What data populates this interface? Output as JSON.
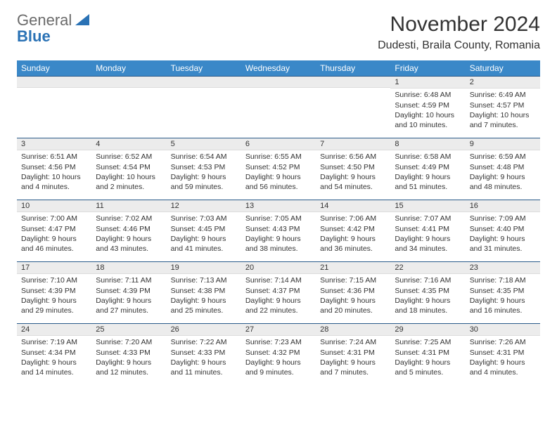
{
  "logo": {
    "word1": "General",
    "word2": "Blue"
  },
  "header": {
    "month_title": "November 2024",
    "location": "Dudesti, Braila County, Romania"
  },
  "colors": {
    "header_bg": "#3a88c8",
    "header_fg": "#ffffff",
    "daynum_bg": "#ececec",
    "border": "#2a5a8a",
    "logo_gray": "#6b6b6b",
    "logo_blue": "#2a72b5",
    "text": "#333333",
    "page_bg": "#ffffff"
  },
  "weekdays": [
    "Sunday",
    "Monday",
    "Tuesday",
    "Wednesday",
    "Thursday",
    "Friday",
    "Saturday"
  ],
  "weeks": [
    [
      null,
      null,
      null,
      null,
      null,
      {
        "n": "1",
        "sunrise": "Sunrise: 6:48 AM",
        "sunset": "Sunset: 4:59 PM",
        "day": "Daylight: 10 hours and 10 minutes."
      },
      {
        "n": "2",
        "sunrise": "Sunrise: 6:49 AM",
        "sunset": "Sunset: 4:57 PM",
        "day": "Daylight: 10 hours and 7 minutes."
      }
    ],
    [
      {
        "n": "3",
        "sunrise": "Sunrise: 6:51 AM",
        "sunset": "Sunset: 4:56 PM",
        "day": "Daylight: 10 hours and 4 minutes."
      },
      {
        "n": "4",
        "sunrise": "Sunrise: 6:52 AM",
        "sunset": "Sunset: 4:54 PM",
        "day": "Daylight: 10 hours and 2 minutes."
      },
      {
        "n": "5",
        "sunrise": "Sunrise: 6:54 AM",
        "sunset": "Sunset: 4:53 PM",
        "day": "Daylight: 9 hours and 59 minutes."
      },
      {
        "n": "6",
        "sunrise": "Sunrise: 6:55 AM",
        "sunset": "Sunset: 4:52 PM",
        "day": "Daylight: 9 hours and 56 minutes."
      },
      {
        "n": "7",
        "sunrise": "Sunrise: 6:56 AM",
        "sunset": "Sunset: 4:50 PM",
        "day": "Daylight: 9 hours and 54 minutes."
      },
      {
        "n": "8",
        "sunrise": "Sunrise: 6:58 AM",
        "sunset": "Sunset: 4:49 PM",
        "day": "Daylight: 9 hours and 51 minutes."
      },
      {
        "n": "9",
        "sunrise": "Sunrise: 6:59 AM",
        "sunset": "Sunset: 4:48 PM",
        "day": "Daylight: 9 hours and 48 minutes."
      }
    ],
    [
      {
        "n": "10",
        "sunrise": "Sunrise: 7:00 AM",
        "sunset": "Sunset: 4:47 PM",
        "day": "Daylight: 9 hours and 46 minutes."
      },
      {
        "n": "11",
        "sunrise": "Sunrise: 7:02 AM",
        "sunset": "Sunset: 4:46 PM",
        "day": "Daylight: 9 hours and 43 minutes."
      },
      {
        "n": "12",
        "sunrise": "Sunrise: 7:03 AM",
        "sunset": "Sunset: 4:45 PM",
        "day": "Daylight: 9 hours and 41 minutes."
      },
      {
        "n": "13",
        "sunrise": "Sunrise: 7:05 AM",
        "sunset": "Sunset: 4:43 PM",
        "day": "Daylight: 9 hours and 38 minutes."
      },
      {
        "n": "14",
        "sunrise": "Sunrise: 7:06 AM",
        "sunset": "Sunset: 4:42 PM",
        "day": "Daylight: 9 hours and 36 minutes."
      },
      {
        "n": "15",
        "sunrise": "Sunrise: 7:07 AM",
        "sunset": "Sunset: 4:41 PM",
        "day": "Daylight: 9 hours and 34 minutes."
      },
      {
        "n": "16",
        "sunrise": "Sunrise: 7:09 AM",
        "sunset": "Sunset: 4:40 PM",
        "day": "Daylight: 9 hours and 31 minutes."
      }
    ],
    [
      {
        "n": "17",
        "sunrise": "Sunrise: 7:10 AM",
        "sunset": "Sunset: 4:39 PM",
        "day": "Daylight: 9 hours and 29 minutes."
      },
      {
        "n": "18",
        "sunrise": "Sunrise: 7:11 AM",
        "sunset": "Sunset: 4:39 PM",
        "day": "Daylight: 9 hours and 27 minutes."
      },
      {
        "n": "19",
        "sunrise": "Sunrise: 7:13 AM",
        "sunset": "Sunset: 4:38 PM",
        "day": "Daylight: 9 hours and 25 minutes."
      },
      {
        "n": "20",
        "sunrise": "Sunrise: 7:14 AM",
        "sunset": "Sunset: 4:37 PM",
        "day": "Daylight: 9 hours and 22 minutes."
      },
      {
        "n": "21",
        "sunrise": "Sunrise: 7:15 AM",
        "sunset": "Sunset: 4:36 PM",
        "day": "Daylight: 9 hours and 20 minutes."
      },
      {
        "n": "22",
        "sunrise": "Sunrise: 7:16 AM",
        "sunset": "Sunset: 4:35 PM",
        "day": "Daylight: 9 hours and 18 minutes."
      },
      {
        "n": "23",
        "sunrise": "Sunrise: 7:18 AM",
        "sunset": "Sunset: 4:35 PM",
        "day": "Daylight: 9 hours and 16 minutes."
      }
    ],
    [
      {
        "n": "24",
        "sunrise": "Sunrise: 7:19 AM",
        "sunset": "Sunset: 4:34 PM",
        "day": "Daylight: 9 hours and 14 minutes."
      },
      {
        "n": "25",
        "sunrise": "Sunrise: 7:20 AM",
        "sunset": "Sunset: 4:33 PM",
        "day": "Daylight: 9 hours and 12 minutes."
      },
      {
        "n": "26",
        "sunrise": "Sunrise: 7:22 AM",
        "sunset": "Sunset: 4:33 PM",
        "day": "Daylight: 9 hours and 11 minutes."
      },
      {
        "n": "27",
        "sunrise": "Sunrise: 7:23 AM",
        "sunset": "Sunset: 4:32 PM",
        "day": "Daylight: 9 hours and 9 minutes."
      },
      {
        "n": "28",
        "sunrise": "Sunrise: 7:24 AM",
        "sunset": "Sunset: 4:31 PM",
        "day": "Daylight: 9 hours and 7 minutes."
      },
      {
        "n": "29",
        "sunrise": "Sunrise: 7:25 AM",
        "sunset": "Sunset: 4:31 PM",
        "day": "Daylight: 9 hours and 5 minutes."
      },
      {
        "n": "30",
        "sunrise": "Sunrise: 7:26 AM",
        "sunset": "Sunset: 4:31 PM",
        "day": "Daylight: 9 hours and 4 minutes."
      }
    ]
  ]
}
